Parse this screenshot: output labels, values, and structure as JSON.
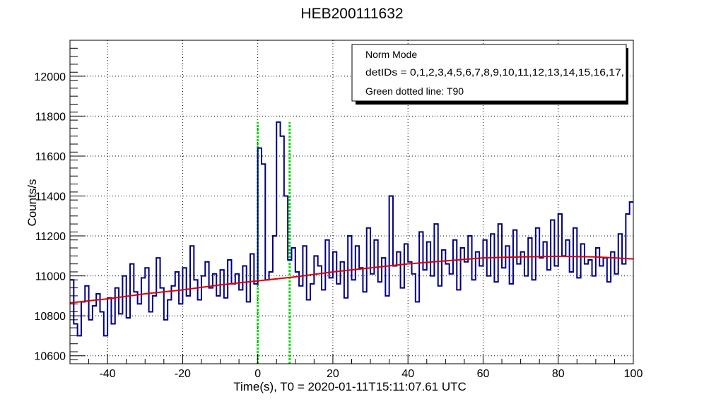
{
  "chart_data": {
    "type": "line",
    "title": "HEB200111632",
    "xlabel": "Time(s), T0 = 2020-01-11T15:11:07.61 UTC",
    "ylabel": "Counts/s",
    "xlim": [
      -50,
      100
    ],
    "ylim": [
      10560,
      12180
    ],
    "x_ticks": [
      -40,
      -20,
      0,
      20,
      40,
      60,
      80,
      100
    ],
    "y_ticks": [
      10600,
      10800,
      11000,
      11200,
      11400,
      11600,
      11800,
      12000
    ],
    "grid": true,
    "legend": {
      "placement": "top-right",
      "entries": [
        "Norm Mode",
        "detIDs = 0,1,2,3,4,5,6,7,8,9,10,11,12,13,14,15,16,17,",
        "Green dotted line: T90"
      ]
    },
    "colors": {
      "lightcurve": "#000080",
      "background_fit": "#dd0000",
      "t90": "#00dd00"
    },
    "series": [
      {
        "style": "step",
        "x": [
          -50,
          -49,
          -48,
          -47,
          -46,
          -45,
          -44,
          -43,
          -42,
          -41,
          -40,
          -39,
          -38,
          -37,
          -36,
          -35,
          -34,
          -33,
          -32,
          -31,
          -30,
          -29,
          -28,
          -27,
          -26,
          -25,
          -24,
          -23,
          -22,
          -21,
          -20,
          -19,
          -18,
          -17,
          -16,
          -15,
          -14,
          -13,
          -12,
          -11,
          -10,
          -9,
          -8,
          -7,
          -6,
          -5,
          -4,
          -3,
          -2,
          -1,
          0,
          1,
          2,
          3,
          4,
          5,
          6,
          7,
          8,
          9,
          10,
          11,
          12,
          13,
          14,
          15,
          16,
          17,
          18,
          19,
          20,
          21,
          22,
          23,
          24,
          25,
          26,
          27,
          28,
          29,
          30,
          31,
          32,
          33,
          34,
          35,
          36,
          37,
          38,
          39,
          40,
          41,
          42,
          43,
          44,
          45,
          46,
          47,
          48,
          49,
          50,
          51,
          52,
          53,
          54,
          55,
          56,
          57,
          58,
          59,
          60,
          61,
          62,
          63,
          64,
          65,
          66,
          67,
          68,
          69,
          70,
          71,
          72,
          73,
          74,
          75,
          76,
          77,
          78,
          79,
          80,
          81,
          82,
          83,
          84,
          85,
          86,
          87,
          88,
          89,
          90,
          91,
          92,
          93,
          94,
          95,
          96,
          97,
          98,
          99
        ],
        "y": [
          10980,
          10760,
          10700,
          10870,
          10950,
          10780,
          10850,
          10910,
          10820,
          10700,
          10890,
          10760,
          10940,
          10810,
          11000,
          10790,
          11060,
          10920,
          10860,
          10990,
          11040,
          10820,
          10900,
          11090,
          10940,
          10780,
          10880,
          10950,
          11020,
          10860,
          11040,
          10900,
          11150,
          10980,
          10880,
          11000,
          11070,
          10940,
          11010,
          10900,
          11030,
          10890,
          11080,
          10960,
          11010,
          10930,
          11050,
          10870,
          11110,
          10960,
          11640,
          11560,
          10980,
          11020,
          11200,
          11770,
          11700,
          11400,
          11080,
          11140,
          11020,
          10950,
          11150,
          10880,
          10960,
          11100,
          11050,
          10930,
          11180,
          10990,
          11120,
          10960,
          11070,
          10890,
          11200,
          10980,
          11150,
          11040,
          10920,
          11240,
          11010,
          11180,
          10970,
          11090,
          10900,
          11400,
          11050,
          11120,
          10940,
          11160,
          11070,
          11010,
          10870,
          11220,
          11030,
          11170,
          11000,
          11260,
          10950,
          11130,
          11060,
          11010,
          11180,
          10930,
          11140,
          11070,
          11200,
          10980,
          11120,
          11050,
          11180,
          11000,
          11210,
          10970,
          11260,
          11040,
          11150,
          10960,
          11230,
          11060,
          11120,
          11000,
          11190,
          10980,
          11240,
          11090,
          11170,
          11030,
          11280,
          11050,
          11310,
          11100,
          11180,
          11020,
          11240,
          10990,
          11160,
          11060,
          11080,
          11000,
          11140,
          11050,
          11090,
          10970,
          11120,
          11010,
          11210,
          11060,
          11310,
          11370
        ]
      },
      {
        "style": "smooth",
        "x": [
          -50,
          -40,
          -30,
          -20,
          -10,
          0,
          10,
          20,
          30,
          40,
          50,
          60,
          70,
          80,
          90,
          100
        ],
        "y": [
          10865,
          10885,
          10910,
          10930,
          10955,
          10975,
          10995,
          11020,
          11040,
          11060,
          11075,
          11090,
          11095,
          11098,
          11095,
          11085
        ]
      }
    ],
    "t90_lines": [
      0,
      8.5
    ],
    "t90_ymax": 11770
  }
}
